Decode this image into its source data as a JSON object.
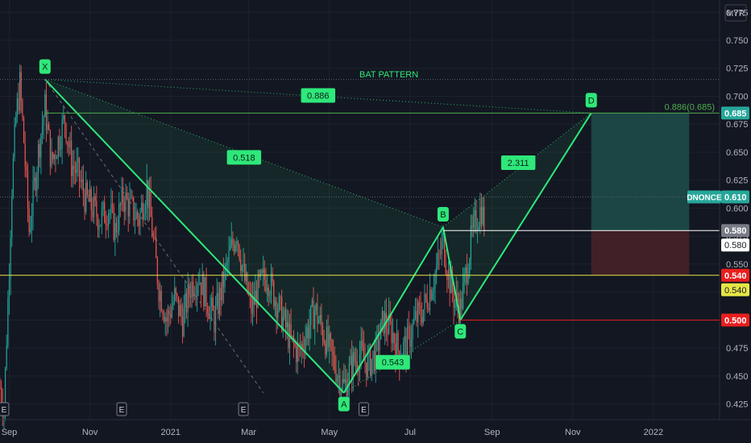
{
  "currency_badge": "MYR",
  "colors": {
    "background": "#131722",
    "grid": "#1e222d",
    "up": "#26a69a",
    "down": "#ef5350",
    "pattern": "#2ee87a",
    "pattern_text": "#0d1f14",
    "yellow": "#e6e645",
    "red_line": "#e91e1e",
    "white_line": "#ffffff",
    "green_level": "#4cae4c",
    "profit_zone": "#1d4f4b",
    "loss_zone": "#4a2328",
    "price_badge": "#26a69a"
  },
  "chart_data": {
    "type": "candlestick",
    "title": "BAT PATTERN",
    "y_axis": {
      "ticks": [
        "0.775",
        "0.750",
        "0.725",
        "0.700",
        "0.675",
        "0.650",
        "0.625",
        "0.600",
        "0.575",
        "0.550",
        "0.525",
        "0.500",
        "0.475",
        "0.450",
        "0.425"
      ],
      "range": [
        0.411,
        0.786
      ]
    },
    "x_axis": {
      "ticks": [
        "Sep",
        "Nov",
        "2021",
        "Mar",
        "May",
        "Jul",
        "Sep",
        "Nov",
        "2022"
      ],
      "range": [
        "2020-08-25",
        "2022-02-20"
      ]
    },
    "earnings_markers": [
      {
        "date": "2020-08-28",
        "label": "E"
      },
      {
        "date": "2020-11-25",
        "label": "E"
      },
      {
        "date": "2021-02-25",
        "label": "E"
      },
      {
        "date": "2021-05-27",
        "label": "E"
      }
    ],
    "pattern_points": [
      {
        "label": "X",
        "date": "2020-09-28",
        "value": 0.715
      },
      {
        "label": "A",
        "date": "2021-05-12",
        "value": 0.435
      },
      {
        "label": "B",
        "date": "2021-07-26",
        "value": 0.583
      },
      {
        "label": "C",
        "date": "2021-08-08",
        "value": 0.5
      },
      {
        "label": "D",
        "date": "2021-11-15",
        "value": 0.685
      }
    ],
    "ratios": [
      {
        "value": "0.886",
        "from": "X",
        "to": "D"
      },
      {
        "value": "0.518",
        "from": "X",
        "to": "B"
      },
      {
        "value": "0.543",
        "from": "A",
        "to": "C"
      },
      {
        "value": "2.311",
        "from": "B",
        "to": "D"
      }
    ],
    "horizontal_levels": [
      {
        "value": 0.715,
        "style": "dotted",
        "color": "gray"
      },
      {
        "value": 0.685,
        "style": "solid",
        "color": "green",
        "annotation": "0.886(0.685)",
        "badge": "0.685"
      },
      {
        "value": 0.61,
        "style": "dotted",
        "color": "gray",
        "badge": "0.610",
        "symbol_label": "DNONCE"
      },
      {
        "value": 0.58,
        "style": "solid",
        "color": "white",
        "badge": "0.580",
        "secondary_badge": "0.580"
      },
      {
        "value": 0.54,
        "style": "solid",
        "color": "yellow",
        "badge": "0.540",
        "secondary_badge": "0.540"
      },
      {
        "value": 0.5,
        "style": "solid",
        "color": "red",
        "badge": "0.500"
      }
    ],
    "position_tool": {
      "start_date": "2021-11-15",
      "end_date": "2022-01-28",
      "entry": 0.58,
      "target": 0.685,
      "stop": 0.54
    },
    "last_price": 0.61,
    "symbol": "DNONCE",
    "price_path": [
      [
        "2020-08-25",
        0.44
      ],
      [
        "2020-08-28",
        0.42
      ],
      [
        "2020-09-01",
        0.55
      ],
      [
        "2020-09-03",
        0.62
      ],
      [
        "2020-09-06",
        0.68
      ],
      [
        "2020-09-09",
        0.71
      ],
      [
        "2020-09-12",
        0.66
      ],
      [
        "2020-09-16",
        0.58
      ],
      [
        "2020-09-20",
        0.62
      ],
      [
        "2020-09-24",
        0.66
      ],
      [
        "2020-09-28",
        0.69
      ],
      [
        "2020-10-03",
        0.64
      ],
      [
        "2020-10-08",
        0.66
      ],
      [
        "2020-10-13",
        0.68
      ],
      [
        "2020-10-18",
        0.64
      ],
      [
        "2020-10-23",
        0.63
      ],
      [
        "2020-10-28",
        0.61
      ],
      [
        "2020-11-03",
        0.6
      ],
      [
        "2020-11-09",
        0.59
      ],
      [
        "2020-11-15",
        0.6
      ],
      [
        "2020-11-20",
        0.58
      ],
      [
        "2020-11-26",
        0.61
      ],
      [
        "2020-12-02",
        0.6
      ],
      [
        "2020-12-08",
        0.59
      ],
      [
        "2020-12-14",
        0.62
      ],
      [
        "2020-12-18",
        0.58
      ],
      [
        "2020-12-23",
        0.53
      ],
      [
        "2020-12-29",
        0.5
      ],
      [
        "2021-01-04",
        0.52
      ],
      [
        "2021-01-10",
        0.5
      ],
      [
        "2021-01-16",
        0.53
      ],
      [
        "2021-01-22",
        0.54
      ],
      [
        "2021-01-28",
        0.52
      ],
      [
        "2021-02-03",
        0.5
      ],
      [
        "2021-02-09",
        0.53
      ],
      [
        "2021-02-15",
        0.56
      ],
      [
        "2021-02-20",
        0.58
      ],
      [
        "2021-02-25",
        0.54
      ],
      [
        "2021-03-03",
        0.51
      ],
      [
        "2021-03-09",
        0.53
      ],
      [
        "2021-03-15",
        0.54
      ],
      [
        "2021-03-21",
        0.52
      ],
      [
        "2021-03-27",
        0.5
      ],
      [
        "2021-04-02",
        0.48
      ],
      [
        "2021-04-08",
        0.47
      ],
      [
        "2021-04-14",
        0.49
      ],
      [
        "2021-04-20",
        0.51
      ],
      [
        "2021-04-26",
        0.49
      ],
      [
        "2021-05-02",
        0.47
      ],
      [
        "2021-05-08",
        0.45
      ],
      [
        "2021-05-12",
        0.44
      ],
      [
        "2021-05-18",
        0.46
      ],
      [
        "2021-05-24",
        0.47
      ],
      [
        "2021-05-30",
        0.46
      ],
      [
        "2021-06-05",
        0.47
      ],
      [
        "2021-06-11",
        0.5
      ],
      [
        "2021-06-17",
        0.49
      ],
      [
        "2021-06-23",
        0.47
      ],
      [
        "2021-06-29",
        0.48
      ],
      [
        "2021-07-05",
        0.5
      ],
      [
        "2021-07-11",
        0.51
      ],
      [
        "2021-07-17",
        0.53
      ],
      [
        "2021-07-22",
        0.55
      ],
      [
        "2021-07-26",
        0.57
      ],
      [
        "2021-07-30",
        0.54
      ],
      [
        "2021-08-03",
        0.52
      ],
      [
        "2021-08-08",
        0.51
      ],
      [
        "2021-08-12",
        0.54
      ],
      [
        "2021-08-16",
        0.57
      ],
      [
        "2021-08-20",
        0.59
      ],
      [
        "2021-08-24",
        0.6
      ],
      [
        "2021-08-27",
        0.58
      ]
    ]
  }
}
